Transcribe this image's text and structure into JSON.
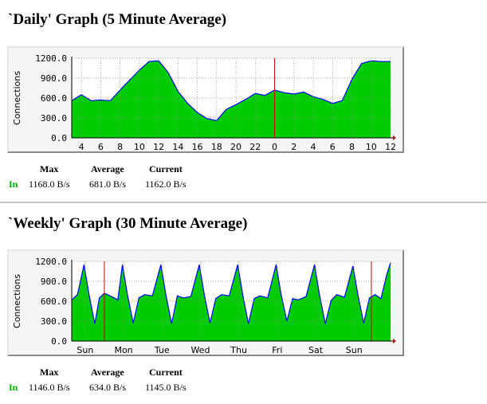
{
  "graphs": [
    {
      "id": "daily",
      "title": "`Daily' Graph (5 Minute Average)",
      "stats": {
        "max_label": "Max",
        "average_label": "Average",
        "current_label": "Current",
        "in_label": "In",
        "max": "1168.0 B/s",
        "average": "681.0 B/s",
        "current": "1162.0 B/s"
      },
      "chart_data": {
        "type": "area",
        "ylabel": "Connections",
        "ylim": [
          0,
          1200
        ],
        "y_ticks": [
          "0.0",
          "300.0",
          "600.0",
          "900.0",
          "1200.0"
        ],
        "x_ticks": [
          "4",
          "6",
          "8",
          "10",
          "12",
          "14",
          "16",
          "18",
          "20",
          "22",
          "0",
          "2",
          "4",
          "6",
          "8",
          "10",
          "12"
        ],
        "x_range_hours": [
          3,
          36
        ],
        "grid": true,
        "fill_color": "#00cc00",
        "line_color": "#0000ff",
        "marker_color": "#cc0000",
        "markers": [
          24
        ],
        "series": [
          {
            "x": [
              3,
              4,
              5,
              6,
              7,
              8,
              9,
              10,
              11,
              12,
              13,
              14,
              15,
              16,
              17,
              18,
              19,
              20,
              21,
              22,
              23,
              24,
              25,
              26,
              27,
              28,
              29,
              30,
              31,
              32,
              33,
              34,
              35,
              36
            ],
            "y": [
              560,
              650,
              560,
              570,
              560,
              720,
              870,
              1020,
              1150,
              1160,
              980,
              700,
              520,
              380,
              290,
              260,
              430,
              500,
              580,
              670,
              640,
              720,
              680,
              660,
              690,
              620,
              580,
              520,
              560,
              880,
              1120,
              1160,
              1150,
              1150
            ]
          }
        ]
      }
    },
    {
      "id": "weekly",
      "title": "`Weekly' Graph (30 Minute Average)",
      "stats": {
        "max_label": "Max",
        "average_label": "Average",
        "current_label": "Current",
        "in_label": "In",
        "max": "1146.0 B/s",
        "average": "634.0 B/s",
        "current": "1145.0 B/s"
      },
      "chart_data": {
        "type": "area",
        "ylabel": "Connections",
        "ylim": [
          0,
          1200
        ],
        "y_ticks": [
          "0.0",
          "300.0",
          "600.0",
          "900.0",
          "1200.0"
        ],
        "x_ticks": [
          "Sun",
          "Mon",
          "Tue",
          "Wed",
          "Thu",
          "Fri",
          "Sat",
          "Sun"
        ],
        "x_range_days": [
          0,
          8.3
        ],
        "grid": true,
        "fill_color": "#00cc00",
        "line_color": "#0000ff",
        "marker_color": "#cc0000",
        "markers": [
          0.85,
          7.8
        ],
        "series": [
          {
            "x": [
              0,
              0.15,
              0.32,
              0.45,
              0.6,
              0.72,
              0.85,
              1.0,
              1.2,
              1.32,
              1.45,
              1.6,
              1.75,
              1.9,
              2.1,
              2.32,
              2.45,
              2.6,
              2.75,
              2.9,
              3.1,
              3.32,
              3.45,
              3.6,
              3.75,
              3.9,
              4.1,
              4.32,
              4.45,
              4.6,
              4.75,
              4.9,
              5.1,
              5.32,
              5.45,
              5.6,
              5.75,
              5.9,
              6.1,
              6.32,
              6.45,
              6.6,
              6.75,
              6.9,
              7.1,
              7.32,
              7.45,
              7.6,
              7.75,
              7.9,
              8.05,
              8.2,
              8.3
            ],
            "y": [
              620,
              700,
              1150,
              700,
              260,
              650,
              720,
              680,
              620,
              1150,
              700,
              270,
              650,
              700,
              680,
              1150,
              700,
              260,
              680,
              650,
              670,
              1150,
              700,
              270,
              640,
              700,
              680,
              1150,
              700,
              260,
              640,
              680,
              650,
              1150,
              700,
              300,
              640,
              620,
              670,
              1150,
              700,
              260,
              610,
              700,
              660,
              1130,
              700,
              270,
              650,
              700,
              640,
              1000,
              1180
            ]
          }
        ]
      }
    }
  ]
}
